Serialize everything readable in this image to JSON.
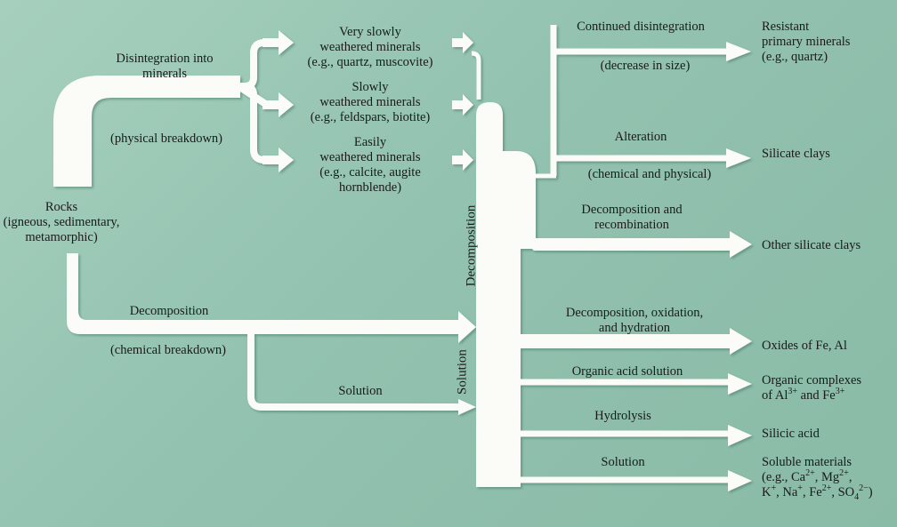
{
  "source": {
    "lines": [
      "Rocks",
      "(igneous, sedimentary,",
      "metamorphic)"
    ]
  },
  "upper_branch": {
    "label": [
      "Disintegration into",
      "minerals"
    ],
    "note": "(physical breakdown)"
  },
  "lower_branch": {
    "label": "Decomposition",
    "note": "(chemical breakdown)",
    "solution": "Solution"
  },
  "minerals": [
    {
      "lines": [
        "Very slowly",
        "weathered minerals",
        "(e.g., quartz, muscovite)"
      ]
    },
    {
      "lines": [
        "Slowly",
        "weathered minerals",
        "(e.g., feldspars, biotite)"
      ]
    },
    {
      "lines": [
        "Easily",
        "weathered minerals",
        "(e.g., calcite, augite",
        "hornblende)"
      ]
    }
  ],
  "trunk": {
    "decomposition": "Decomposition",
    "solution": "Solution"
  },
  "processes": {
    "continued_disintegration": {
      "top": "Continued disintegration",
      "bottom": "(decrease in size)"
    },
    "alteration": {
      "top": "Alteration",
      "bottom": "(chemical and physical)"
    },
    "decomposition_recombination": [
      "Decomposition and",
      "recombination"
    ],
    "decomposition_oxidation": [
      "Decomposition, oxidation,",
      "and hydration"
    ],
    "organic_acid": "Organic acid solution",
    "hydrolysis": "Hydrolysis",
    "solution": "Solution"
  },
  "products": {
    "resistant": [
      "Resistant",
      "primary minerals",
      "(e.g., quartz)"
    ],
    "silicate_clays": "Silicate clays",
    "other_silicate_clays": "Other silicate clays",
    "oxides": "Oxides of Fe, Al",
    "organic_complexes": {
      "line1": "Organic complexes",
      "line2_a": "of Al",
      "sup1": "3+",
      "line2_b": " and Fe",
      "sup2": "3+"
    },
    "silicic_acid": "Silicic acid",
    "soluble": {
      "line1": "Soluble materials",
      "l2a": "(e.g., Ca",
      "l2s1": "2+",
      "l2b": ", Mg",
      "l2s2": "2+",
      "l2c": ",",
      "l3a": "K",
      "l3s1": "+",
      "l3b": ", Na",
      "l3s2": "+",
      "l3c": ", Fe",
      "l3s3": "2+",
      "l3d": ", SO",
      "l3sub": "4",
      "l3s4": "2−",
      "l3e": ")"
    }
  }
}
